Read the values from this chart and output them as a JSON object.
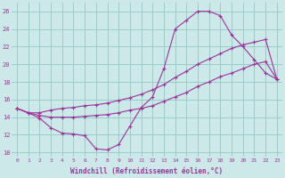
{
  "xlabel": "Windchill (Refroidissement éolien,°C)",
  "background_color": "#cce8e8",
  "grid_color": "#99cccc",
  "line_color": "#993399",
  "xlim_min": -0.5,
  "xlim_max": 23.5,
  "ylim_min": 9.5,
  "ylim_max": 27.0,
  "yticks": [
    10,
    12,
    14,
    16,
    18,
    20,
    22,
    24,
    26
  ],
  "xticks": [
    0,
    1,
    2,
    3,
    4,
    5,
    6,
    7,
    8,
    9,
    10,
    11,
    12,
    13,
    14,
    15,
    16,
    17,
    18,
    19,
    20,
    21,
    22,
    23
  ],
  "hours": [
    0,
    1,
    2,
    3,
    4,
    5,
    6,
    7,
    8,
    9,
    10,
    11,
    12,
    13,
    14,
    15,
    16,
    17,
    18,
    19,
    20,
    21,
    22,
    23
  ],
  "temp": [
    15.0,
    14.5,
    13.9,
    12.8,
    12.2,
    12.1,
    11.9,
    10.4,
    10.3,
    10.9,
    13.0,
    15.1,
    16.3,
    19.5,
    24.0,
    25.0,
    26.0,
    26.0,
    25.5,
    23.3,
    22.0,
    20.5,
    19.0,
    18.3
  ],
  "wc_low": [
    15.0,
    14.5,
    14.2,
    14.0,
    14.0,
    14.0,
    14.1,
    14.2,
    14.3,
    14.5,
    14.8,
    15.0,
    15.3,
    15.8,
    16.3,
    16.8,
    17.5,
    18.0,
    18.6,
    19.0,
    19.5,
    20.0,
    20.3,
    18.3
  ],
  "wc_mid": [
    15.0,
    14.5,
    14.5,
    14.8,
    15.0,
    15.1,
    15.3,
    15.4,
    15.6,
    15.9,
    16.2,
    16.6,
    17.1,
    17.7,
    18.5,
    19.2,
    20.0,
    20.6,
    21.2,
    21.8,
    22.2,
    22.5,
    22.8,
    18.3
  ]
}
